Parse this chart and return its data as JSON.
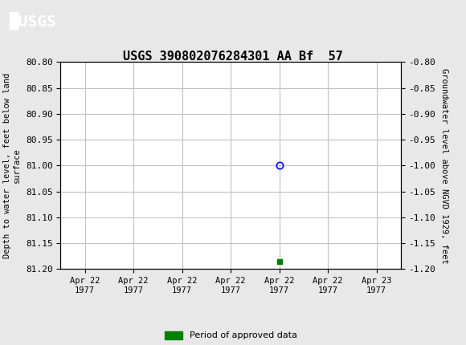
{
  "title": "USGS 390802076284301 AA Bf  57",
  "left_ylabel": "Depth to water level, feet below land\nsurface",
  "right_ylabel": "Groundwater level above NGVD 1929, feet",
  "ylim_left": [
    80.8,
    81.2
  ],
  "ylim_right": [
    -0.8,
    -1.2
  ],
  "yticks_left": [
    80.8,
    80.85,
    80.9,
    80.95,
    81.0,
    81.05,
    81.1,
    81.15,
    81.2
  ],
  "yticks_right": [
    -0.8,
    -0.85,
    -0.9,
    -0.95,
    -1.0,
    -1.05,
    -1.1,
    -1.15,
    -1.2
  ],
  "data_point_x": 4.0,
  "data_point_y_blue": 81.0,
  "data_point_y_green": 81.185,
  "x_tick_labels": [
    "Apr 22\n1977",
    "Apr 22\n1977",
    "Apr 22\n1977",
    "Apr 22\n1977",
    "Apr 22\n1977",
    "Apr 22\n1977",
    "Apr 23\n1977"
  ],
  "x_tick_positions": [
    0,
    1,
    2,
    3,
    4,
    5,
    6
  ],
  "background_color": "#e8e8e8",
  "header_color": "#2e6b4f",
  "plot_bg_color": "#ffffff",
  "grid_color": "#c0c0c0",
  "blue_circle_color": "#0000ff",
  "green_square_color": "#008000",
  "legend_label": "Period of approved data",
  "font_family": "monospace"
}
